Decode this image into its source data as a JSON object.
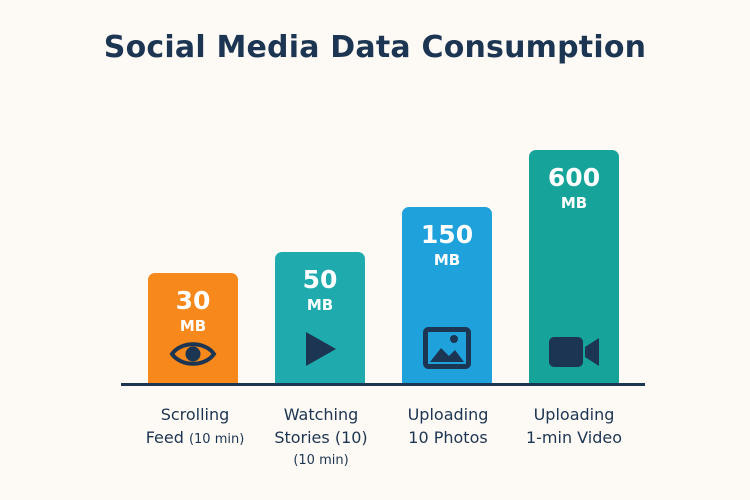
{
  "chart_data": {
    "type": "bar",
    "title": "Social Media Data Consumption",
    "categories": [
      {
        "line1": "Scrolling",
        "line2": "Feed",
        "line2_small": "(10 min)",
        "line3": ""
      },
      {
        "line1": "Watching",
        "line2": "Stories (10)",
        "line2_small": "",
        "line3": "(10 min)"
      },
      {
        "line1": "Uploading",
        "line2": "10 Photos",
        "line2_small": "",
        "line3": ""
      },
      {
        "line1": "Uploading",
        "line2": "1-min Video",
        "line2_small": "",
        "line3": ""
      }
    ],
    "values": [
      30,
      50,
      150,
      600
    ],
    "value_labels": [
      "30",
      "50",
      "150",
      "600"
    ],
    "unit": "MB",
    "bar_colors": [
      "#f7881b",
      "#1fabad",
      "#1fa2dc",
      "#15a39a"
    ],
    "icons": [
      "eye-icon",
      "play-icon",
      "image-icon",
      "video-camera-icon"
    ],
    "icon_color": "#1c3552",
    "scale": "non-linear (bars visually compressed)",
    "grid": false,
    "legend": "none"
  }
}
